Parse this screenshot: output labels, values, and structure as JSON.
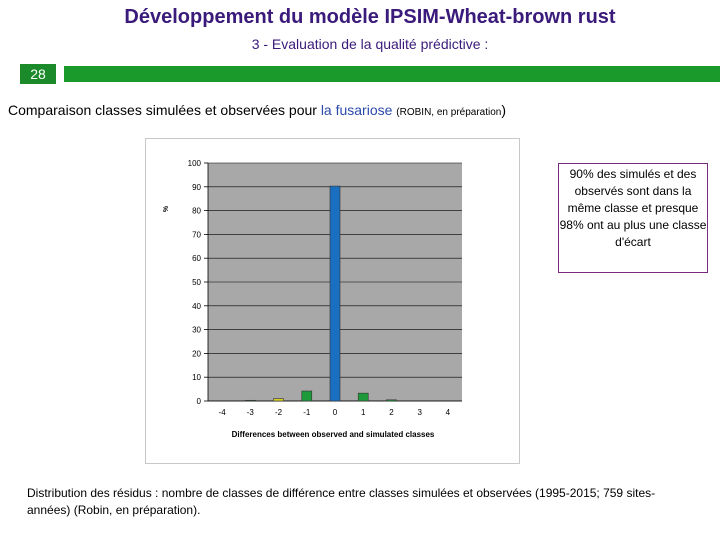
{
  "title": "Développement du modèle IPSIM-Wheat-brown rust",
  "subtitle": "3 -  Evaluation de la qualité prédictive :",
  "slide_number": "28",
  "heading": {
    "main": "Comparaison classes simulées et observées pour ",
    "highlight": "la fusariose",
    "ref": "(ROBIN, en préparation",
    "close": ")"
  },
  "callout_text": "90% des  simulés et des observés sont dans la même classe et presque 98% ont au plus une classe d'écart",
  "caption": "Distribution des résidus : nombre de classes de différence entre classes simulées et observées (1995-2015; 759 sites-années) (Robin, en préparation).",
  "colors": {
    "title": "#3a1a7a",
    "green_bar": "#1a9a2a",
    "plot_bg": "#a8a8a8",
    "bar_center": "#1a6fc0",
    "bar_green": "#1e9a3a",
    "bar_yellow": "#d8d020"
  },
  "chart_data": {
    "type": "bar",
    "categories": [
      "-4",
      "-3",
      "-2",
      "-1",
      "0",
      "1",
      "2",
      "3",
      "4"
    ],
    "values": [
      0,
      0.3,
      1,
      4.2,
      90.3,
      3.3,
      0.5,
      0,
      0
    ],
    "bar_colors": [
      "#1e9a3a",
      "#1e9a3a",
      "#d8d020",
      "#1e9a3a",
      "#1a6fc0",
      "#1e9a3a",
      "#1e9a3a",
      "#1e9a3a",
      "#1e9a3a"
    ],
    "title": "",
    "xlabel": "Differences between observed and simulated classes",
    "ylabel": "%",
    "ylim": [
      0,
      100
    ],
    "yticks": [
      "0",
      "10",
      "20",
      "30",
      "40",
      "50",
      "60",
      "70",
      "80",
      "90",
      "100"
    ],
    "grid": true
  }
}
